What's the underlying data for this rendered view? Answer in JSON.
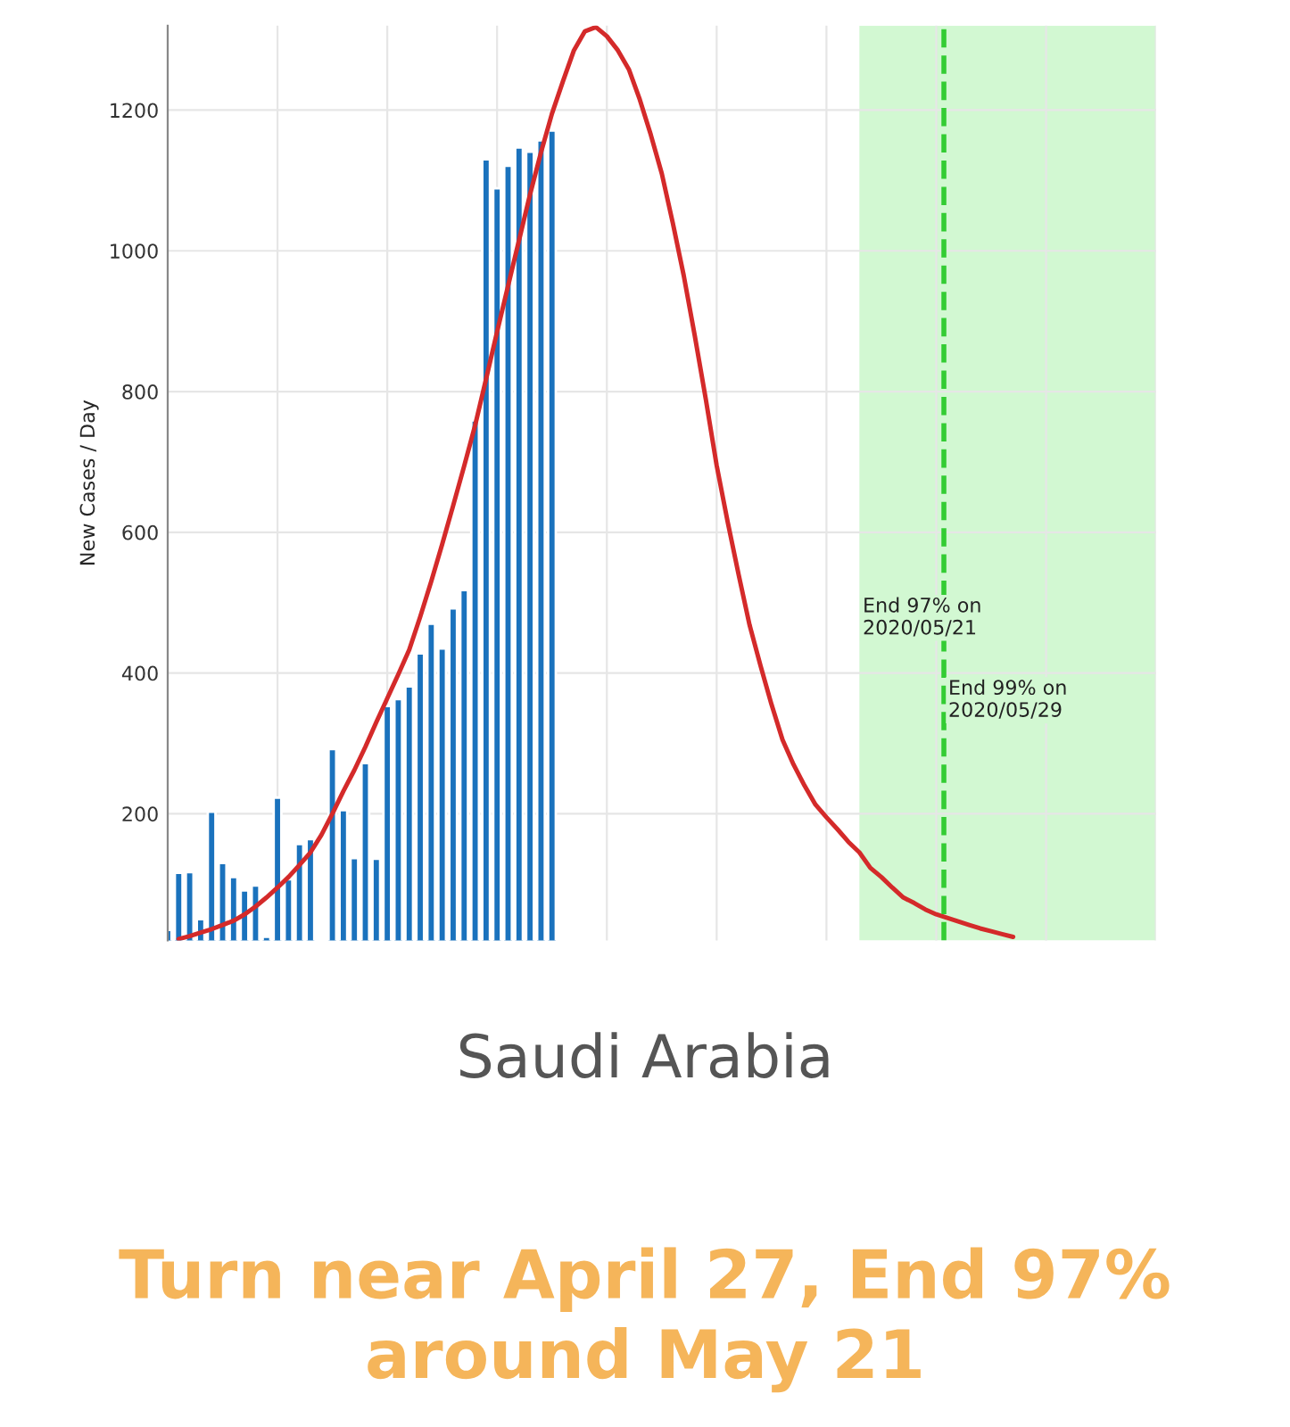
{
  "chart_data": {
    "type": "bar",
    "title": "Saudi Arabia",
    "subtitle": "Turn near April 27, End 97% around May 21",
    "ylabel": "New Cases / Day",
    "categories": [
      null,
      null,
      null,
      null,
      null,
      null,
      null,
      null,
      null,
      null,
      null,
      null,
      null,
      null,
      null,
      null,
      null,
      null,
      null,
      null,
      null,
      null,
      null,
      null,
      null,
      null,
      null,
      null,
      null,
      null,
      null,
      null,
      null,
      null,
      null,
      null,
      null,
      null,
      null,
      null,
      null,
      null,
      null,
      null,
      null,
      null,
      null,
      null,
      null,
      null,
      null,
      null,
      null,
      null,
      null,
      null,
      null,
      null,
      null,
      null,
      null,
      null,
      null,
      null,
      null,
      null,
      null,
      null,
      null,
      null,
      null,
      null,
      null,
      null,
      null,
      null,
      null,
      null,
      null,
      null,
      null,
      null,
      null,
      null,
      null,
      null,
      null,
      null,
      null,
      null,
      null
    ],
    "series": [
      {
        "color": "#1a72bd",
        "values": [
          35,
          116,
          117,
          50,
          203,
          130,
          110,
          91,
          98,
          25,
          223,
          107,
          157,
          164,
          null,
          292,
          205,
          137,
          272,
          136,
          353,
          363,
          381,
          428,
          470,
          435,
          492,
          518,
          759,
          1130,
          1089,
          1121,
          1147,
          1141,
          1157,
          1171,
          null,
          null,
          null,
          null,
          null,
          null,
          null,
          null,
          null,
          null,
          null,
          null,
          null,
          null,
          null,
          null,
          null,
          null,
          null,
          null,
          null,
          null,
          null,
          null,
          null,
          null,
          null,
          null,
          null,
          null,
          null,
          null,
          null,
          null,
          null,
          null,
          null,
          null,
          null,
          null,
          null,
          null,
          null,
          null,
          null,
          null,
          null,
          null,
          null,
          null,
          null,
          null,
          null,
          null,
          null
        ]
      },
      {
        "type": "line",
        "color": "#d42a2a",
        "values": [
          null,
          22,
          26,
          31,
          36,
          42,
          48,
          57,
          68,
          81,
          95,
          110,
          127,
          145,
          170,
          200,
          232,
          262,
          295,
          330,
          364,
          398,
          433,
          480,
          530,
          583,
          638,
          694,
          752,
          818,
          885,
          950,
          1015,
          1080,
          1140,
          1195,
          1241,
          1285,
          1312,
          1318,
          1305,
          1285,
          1258,
          1215,
          1165,
          1110,
          1040,
          965,
          880,
          790,
          695,
          615,
          540,
          468,
          410,
          355,
          305,
          270,
          240,
          213,
          195,
          178,
          160,
          145,
          123,
          110,
          95,
          81,
          73,
          64,
          57,
          52,
          47,
          42,
          37,
          33,
          29,
          25,
          null,
          null,
          null,
          null,
          null,
          null,
          null,
          null,
          null,
          null,
          null,
          null,
          null
        ]
      }
    ],
    "ylim": [
      20,
      1320
    ],
    "yticks": [
      200,
      400,
      600,
      800,
      1000,
      1200
    ],
    "grid": true,
    "annotations": [
      "End 97% on\n2020/05/21",
      "End 99% on\n2020/05/29"
    ]
  }
}
